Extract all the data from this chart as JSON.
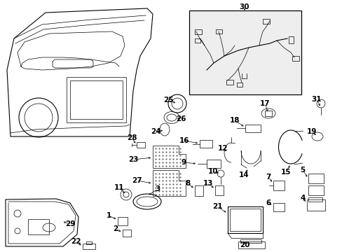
{
  "background_color": "#ffffff",
  "figure_width": 4.89,
  "figure_height": 3.6,
  "dpi": 100,
  "line_color": "#000000",
  "text_color": "#000000",
  "label_fontsize": 7.5,
  "label_fontweight": "bold"
}
